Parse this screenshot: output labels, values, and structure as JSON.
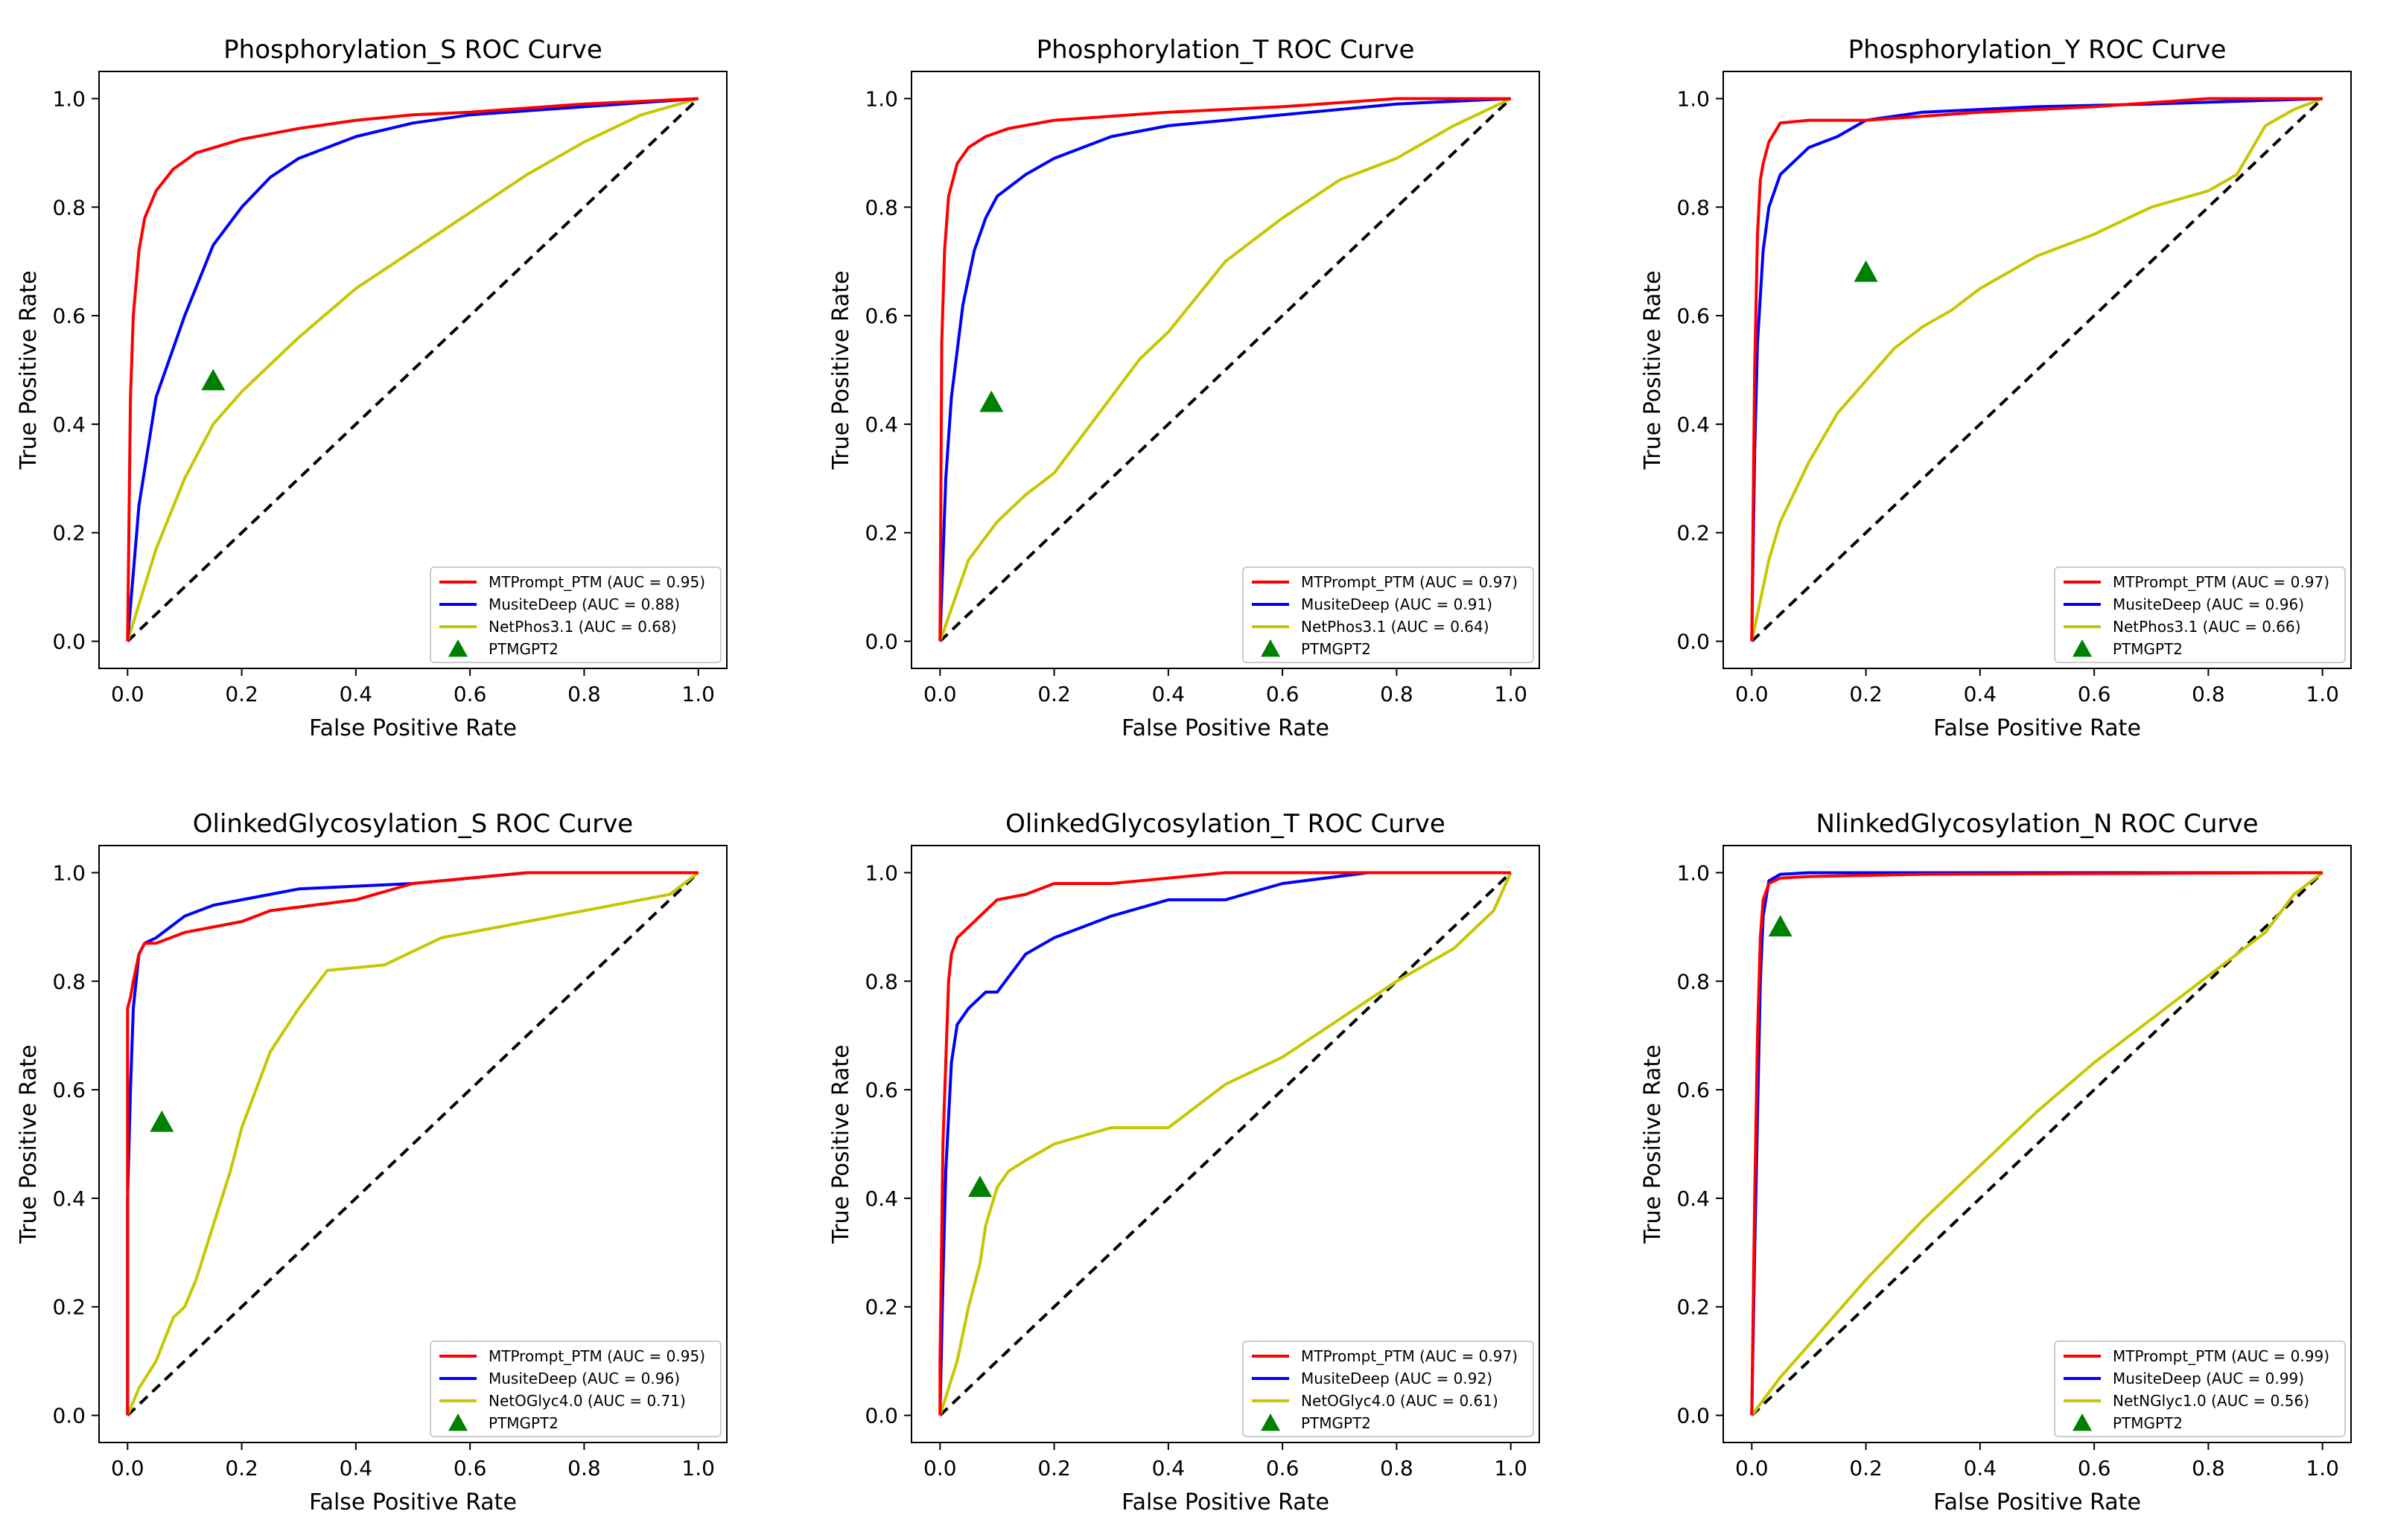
{
  "figure": {
    "description_none": ""
  },
  "chart_data": [
    {
      "type": "line",
      "title": "Phosphorylation_S ROC Curve",
      "xlabel": "False Positive Rate",
      "ylabel": "True Positive Rate",
      "xlim": [
        0,
        1
      ],
      "ylim": [
        0,
        1
      ],
      "xticks": [
        "0.0",
        "0.2",
        "0.4",
        "0.6",
        "0.8",
        "1.0"
      ],
      "yticks": [
        "0.0",
        "0.2",
        "0.4",
        "0.6",
        "0.8",
        "1.0"
      ],
      "legend_position": "bottom-right",
      "series": [
        {
          "name": "MTPrompt_PTM (AUC = 0.95)",
          "color": "#ff0000",
          "x": [
            0,
            0.005,
            0.01,
            0.02,
            0.03,
            0.05,
            0.08,
            0.12,
            0.2,
            0.3,
            0.4,
            0.5,
            0.6,
            0.8,
            1.0
          ],
          "y": [
            0,
            0.45,
            0.6,
            0.72,
            0.78,
            0.83,
            0.87,
            0.9,
            0.925,
            0.945,
            0.96,
            0.97,
            0.975,
            0.99,
            1.0
          ]
        },
        {
          "name": "MusiteDeep (AUC = 0.88)",
          "color": "#0000ff",
          "x": [
            0,
            0.02,
            0.05,
            0.1,
            0.15,
            0.2,
            0.25,
            0.3,
            0.4,
            0.5,
            0.6,
            0.8,
            1.0
          ],
          "y": [
            0,
            0.25,
            0.45,
            0.6,
            0.73,
            0.8,
            0.855,
            0.89,
            0.93,
            0.955,
            0.97,
            0.985,
            1.0
          ]
        },
        {
          "name": "NetPhos3.1 (AUC = 0.68)",
          "color": "#c7c700",
          "x": [
            0,
            0.05,
            0.1,
            0.15,
            0.2,
            0.3,
            0.4,
            0.5,
            0.6,
            0.7,
            0.8,
            0.9,
            1.0
          ],
          "y": [
            0,
            0.17,
            0.3,
            0.4,
            0.46,
            0.56,
            0.65,
            0.72,
            0.79,
            0.86,
            0.92,
            0.97,
            1.0
          ]
        }
      ],
      "marker": {
        "name": "PTMGPT2",
        "x": 0.15,
        "y": 0.48,
        "color": "#008000"
      }
    },
    {
      "type": "line",
      "title": "Phosphorylation_T ROC Curve",
      "xlabel": "False Positive Rate",
      "ylabel": "True Positive Rate",
      "xlim": [
        0,
        1
      ],
      "ylim": [
        0,
        1
      ],
      "xticks": [
        "0.0",
        "0.2",
        "0.4",
        "0.6",
        "0.8",
        "1.0"
      ],
      "yticks": [
        "0.0",
        "0.2",
        "0.4",
        "0.6",
        "0.8",
        "1.0"
      ],
      "legend_position": "bottom-right",
      "series": [
        {
          "name": "MTPrompt_PTM (AUC = 0.97)",
          "color": "#ff0000",
          "x": [
            0,
            0.003,
            0.008,
            0.015,
            0.03,
            0.05,
            0.08,
            0.12,
            0.2,
            0.4,
            0.6,
            0.8,
            1.0
          ],
          "y": [
            0,
            0.55,
            0.72,
            0.82,
            0.88,
            0.91,
            0.93,
            0.945,
            0.96,
            0.975,
            0.985,
            1.0,
            1.0
          ]
        },
        {
          "name": "MusiteDeep (AUC = 0.91)",
          "color": "#0000ff",
          "x": [
            0,
            0.01,
            0.02,
            0.04,
            0.06,
            0.08,
            0.1,
            0.15,
            0.2,
            0.3,
            0.4,
            0.6,
            0.8,
            1.0
          ],
          "y": [
            0,
            0.3,
            0.45,
            0.62,
            0.72,
            0.78,
            0.82,
            0.86,
            0.89,
            0.93,
            0.95,
            0.97,
            0.99,
            1.0
          ]
        },
        {
          "name": "NetPhos3.1 (AUC = 0.64)",
          "color": "#c7c700",
          "x": [
            0,
            0.05,
            0.1,
            0.15,
            0.2,
            0.25,
            0.3,
            0.35,
            0.4,
            0.5,
            0.6,
            0.7,
            0.8,
            0.9,
            1.0
          ],
          "y": [
            0,
            0.15,
            0.22,
            0.27,
            0.31,
            0.38,
            0.45,
            0.52,
            0.57,
            0.7,
            0.78,
            0.85,
            0.89,
            0.95,
            1.0
          ]
        }
      ],
      "marker": {
        "name": "PTMGPT2",
        "x": 0.09,
        "y": 0.44,
        "color": "#008000"
      }
    },
    {
      "type": "line",
      "title": "Phosphorylation_Y ROC Curve",
      "xlabel": "False Positive Rate",
      "ylabel": "True Positive Rate",
      "xlim": [
        0,
        1
      ],
      "ylim": [
        0,
        1
      ],
      "xticks": [
        "0.0",
        "0.2",
        "0.4",
        "0.6",
        "0.8",
        "1.0"
      ],
      "yticks": [
        "0.0",
        "0.2",
        "0.4",
        "0.6",
        "0.8",
        "1.0"
      ],
      "legend_position": "bottom-right",
      "series": [
        {
          "name": "MTPrompt_PTM (AUC = 0.97)",
          "color": "#ff0000",
          "x": [
            0,
            0.005,
            0.01,
            0.015,
            0.02,
            0.03,
            0.05,
            0.1,
            0.2,
            0.4,
            0.6,
            0.8,
            1.0
          ],
          "y": [
            0,
            0.5,
            0.75,
            0.85,
            0.88,
            0.92,
            0.955,
            0.96,
            0.96,
            0.975,
            0.985,
            1.0,
            1.0
          ]
        },
        {
          "name": "MusiteDeep (AUC = 0.96)",
          "color": "#0000ff",
          "x": [
            0,
            0.005,
            0.01,
            0.02,
            0.03,
            0.05,
            0.08,
            0.1,
            0.15,
            0.2,
            0.3,
            0.5,
            0.7,
            1.0
          ],
          "y": [
            0,
            0.35,
            0.55,
            0.72,
            0.8,
            0.86,
            0.89,
            0.91,
            0.93,
            0.96,
            0.975,
            0.985,
            0.99,
            1.0
          ]
        },
        {
          "name": "NetPhos3.1 (AUC = 0.66)",
          "color": "#c7c700",
          "x": [
            0,
            0.03,
            0.05,
            0.1,
            0.15,
            0.2,
            0.25,
            0.3,
            0.35,
            0.4,
            0.5,
            0.6,
            0.7,
            0.8,
            0.85,
            0.9,
            0.95,
            1.0
          ],
          "y": [
            0,
            0.15,
            0.22,
            0.33,
            0.42,
            0.48,
            0.54,
            0.58,
            0.61,
            0.65,
            0.71,
            0.75,
            0.8,
            0.83,
            0.86,
            0.95,
            0.98,
            1.0
          ]
        }
      ],
      "marker": {
        "name": "PTMGPT2",
        "x": 0.2,
        "y": 0.68,
        "color": "#008000"
      }
    },
    {
      "type": "line",
      "title": "OlinkedGlycosylation_S ROC Curve",
      "xlabel": "False Positive Rate",
      "ylabel": "True Positive Rate",
      "xlim": [
        0,
        1
      ],
      "ylim": [
        0,
        1
      ],
      "xticks": [
        "0.0",
        "0.2",
        "0.4",
        "0.6",
        "0.8",
        "1.0"
      ],
      "yticks": [
        "0.0",
        "0.2",
        "0.4",
        "0.6",
        "0.8",
        "1.0"
      ],
      "legend_position": "bottom-right",
      "series": [
        {
          "name": "MTPrompt_PTM (AUC = 0.95)",
          "color": "#ff0000",
          "x": [
            0,
            0.0,
            0.005,
            0.01,
            0.02,
            0.03,
            0.05,
            0.1,
            0.2,
            0.25,
            0.4,
            0.5,
            0.7,
            1.0
          ],
          "y": [
            0,
            0.75,
            0.77,
            0.8,
            0.85,
            0.87,
            0.87,
            0.89,
            0.91,
            0.93,
            0.95,
            0.98,
            1.0,
            1.0
          ]
        },
        {
          "name": "MusiteDeep (AUC = 0.96)",
          "color": "#0000ff",
          "x": [
            0,
            0.0,
            0.005,
            0.01,
            0.02,
            0.03,
            0.05,
            0.1,
            0.15,
            0.2,
            0.3,
            0.5,
            0.7,
            1.0
          ],
          "y": [
            0,
            0.4,
            0.6,
            0.75,
            0.85,
            0.87,
            0.88,
            0.92,
            0.94,
            0.95,
            0.97,
            0.98,
            1.0,
            1.0
          ]
        },
        {
          "name": "NetOGlyc4.0 (AUC = 0.71)",
          "color": "#c7c700",
          "x": [
            0,
            0.02,
            0.05,
            0.08,
            0.1,
            0.12,
            0.15,
            0.18,
            0.2,
            0.25,
            0.3,
            0.35,
            0.45,
            0.55,
            0.65,
            0.8,
            0.95,
            1.0
          ],
          "y": [
            0,
            0.05,
            0.1,
            0.18,
            0.2,
            0.25,
            0.35,
            0.45,
            0.53,
            0.67,
            0.75,
            0.82,
            0.83,
            0.88,
            0.9,
            0.93,
            0.96,
            1.0
          ]
        }
      ],
      "marker": {
        "name": "PTMGPT2",
        "x": 0.06,
        "y": 0.54,
        "color": "#008000"
      }
    },
    {
      "type": "line",
      "title": "OlinkedGlycosylation_T ROC Curve",
      "xlabel": "False Positive Rate",
      "ylabel": "True Positive Rate",
      "xlim": [
        0,
        1
      ],
      "ylim": [
        0,
        1
      ],
      "xticks": [
        "0.0",
        "0.2",
        "0.4",
        "0.6",
        "0.8",
        "1.0"
      ],
      "yticks": [
        "0.0",
        "0.2",
        "0.4",
        "0.6",
        "0.8",
        "1.0"
      ],
      "legend_position": "bottom-right",
      "series": [
        {
          "name": "MTPrompt_PTM (AUC = 0.97)",
          "color": "#ff0000",
          "x": [
            0,
            0.0,
            0.005,
            0.01,
            0.015,
            0.02,
            0.03,
            0.05,
            0.08,
            0.1,
            0.15,
            0.2,
            0.3,
            0.5,
            0.7,
            1.0
          ],
          "y": [
            0,
            0.1,
            0.5,
            0.65,
            0.8,
            0.85,
            0.88,
            0.9,
            0.93,
            0.95,
            0.96,
            0.98,
            0.98,
            1.0,
            1.0,
            1.0
          ]
        },
        {
          "name": "MusiteDeep (AUC = 0.92)",
          "color": "#0000ff",
          "x": [
            0,
            0.005,
            0.01,
            0.02,
            0.03,
            0.05,
            0.08,
            0.1,
            0.15,
            0.2,
            0.25,
            0.3,
            0.4,
            0.5,
            0.6,
            0.75,
            1.0
          ],
          "y": [
            0,
            0.25,
            0.45,
            0.65,
            0.72,
            0.75,
            0.78,
            0.78,
            0.85,
            0.88,
            0.9,
            0.92,
            0.95,
            0.95,
            0.98,
            1.0,
            1.0
          ]
        },
        {
          "name": "NetOGlyc4.0 (AUC = 0.61)",
          "color": "#c7c700",
          "x": [
            0,
            0.03,
            0.05,
            0.07,
            0.08,
            0.1,
            0.12,
            0.15,
            0.2,
            0.3,
            0.4,
            0.5,
            0.6,
            0.7,
            0.8,
            0.9,
            0.97,
            1.0
          ],
          "y": [
            0,
            0.1,
            0.2,
            0.28,
            0.35,
            0.42,
            0.45,
            0.47,
            0.5,
            0.53,
            0.53,
            0.61,
            0.66,
            0.73,
            0.8,
            0.86,
            0.93,
            1.0
          ]
        }
      ],
      "marker": {
        "name": "PTMGPT2",
        "x": 0.07,
        "y": 0.42,
        "color": "#008000"
      }
    },
    {
      "type": "line",
      "title": "NlinkedGlycosylation_N ROC Curve",
      "xlabel": "False Positive Rate",
      "ylabel": "True Positive Rate",
      "xlim": [
        0,
        1
      ],
      "ylim": [
        0,
        1
      ],
      "xticks": [
        "0.0",
        "0.2",
        "0.4",
        "0.6",
        "0.8",
        "1.0"
      ],
      "yticks": [
        "0.0",
        "0.2",
        "0.4",
        "0.6",
        "0.8",
        "1.0"
      ],
      "legend_position": "bottom-right",
      "series": [
        {
          "name": "MTPrompt_PTM (AUC = 0.99)",
          "color": "#ff0000",
          "x": [
            0,
            0.005,
            0.01,
            0.015,
            0.02,
            0.03,
            0.05,
            0.1,
            0.3,
            1.0
          ],
          "y": [
            0,
            0.4,
            0.7,
            0.88,
            0.95,
            0.98,
            0.99,
            0.993,
            0.997,
            1.0
          ]
        },
        {
          "name": "MusiteDeep (AUC = 0.99)",
          "color": "#0000ff",
          "x": [
            0,
            0.005,
            0.01,
            0.015,
            0.02,
            0.03,
            0.05,
            0.1,
            0.3,
            1.0
          ],
          "y": [
            0,
            0.3,
            0.55,
            0.8,
            0.92,
            0.985,
            0.997,
            1.0,
            1.0,
            1.0
          ]
        },
        {
          "name": "NetNGlyc1.0 (AUC = 0.56)",
          "color": "#c7c700",
          "x": [
            0,
            0.05,
            0.1,
            0.2,
            0.3,
            0.4,
            0.5,
            0.6,
            0.7,
            0.8,
            0.9,
            0.95,
            1.0
          ],
          "y": [
            0,
            0.07,
            0.13,
            0.25,
            0.36,
            0.46,
            0.56,
            0.65,
            0.73,
            0.81,
            0.89,
            0.96,
            1.0
          ]
        }
      ],
      "marker": {
        "name": "PTMGPT2",
        "x": 0.05,
        "y": 0.9,
        "color": "#008000"
      }
    }
  ]
}
